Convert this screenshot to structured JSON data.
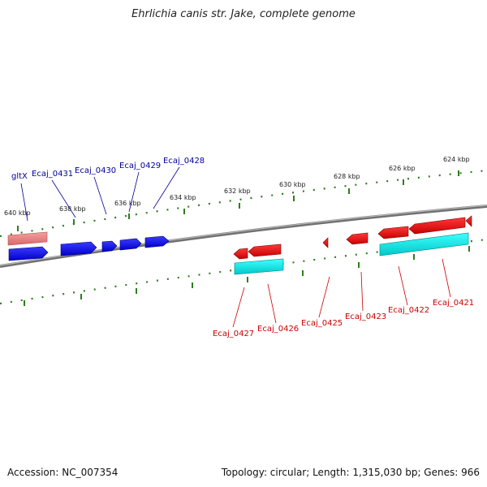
{
  "title": "Ehrlichia canis str. Jake, complete genome",
  "accession": "Accession: NC_007354",
  "summary": "Topology: circular; Length: 1,315,030 bp; Genes: 966",
  "colors": {
    "backbone": "#808080",
    "ticks": "#2e7d1e",
    "forward_label": "#000099",
    "forward_gene": "#0000ee",
    "forward_orf": "#e88080",
    "reverse_label": "#cc0000",
    "reverse_gene": "#ee0000",
    "reverse_orf": "#00e5e5"
  },
  "ticks": [
    "640 kbp",
    "638 kbp",
    "636 kbp",
    "634 kbp",
    "632 kbp",
    "630 kbp",
    "628 kbp",
    "626 kbp",
    "624 kbp"
  ],
  "forward_labels": [
    "gltX",
    "Ecaj_0431",
    "Ecaj_0430",
    "Ecaj_0429",
    "Ecaj_0428"
  ],
  "reverse_labels": [
    "Ecaj_0427",
    "Ecaj_0426",
    "Ecaj_0425",
    "Ecaj_0423",
    "Ecaj_0422",
    "Ecaj_0421"
  ]
}
